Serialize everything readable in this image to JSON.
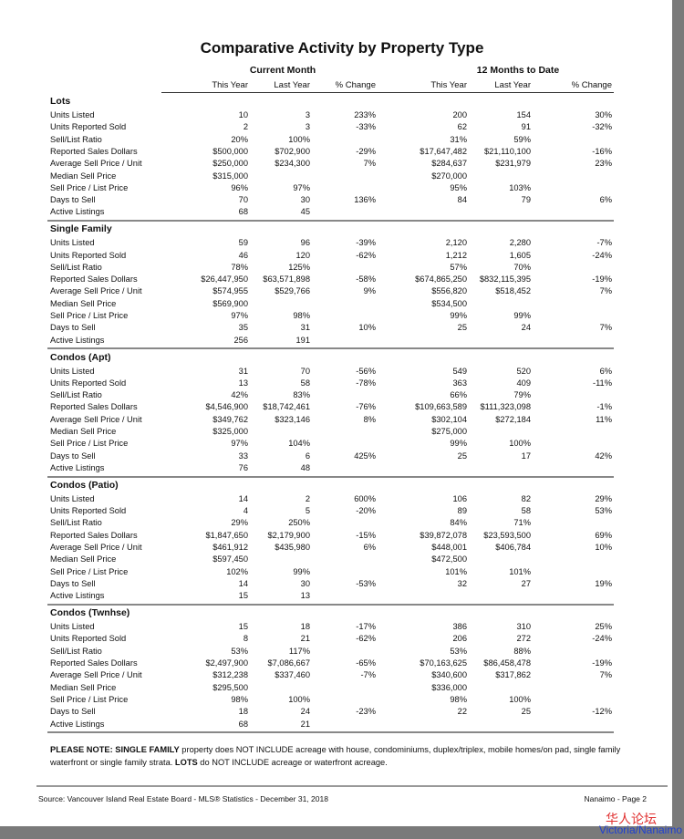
{
  "title": "Comparative Activity by Property Type",
  "groups": {
    "current": "Current Month",
    "ytd": "12 Months to Date"
  },
  "columns": [
    "This Year",
    "Last Year",
    "% Change",
    "This Year",
    "Last Year",
    "% Change"
  ],
  "sections": [
    {
      "name": "Lots",
      "rows": [
        {
          "label": "Units Listed",
          "v": [
            "10",
            "3",
            "233%",
            "200",
            "154",
            "30%"
          ]
        },
        {
          "label": "Units Reported Sold",
          "v": [
            "2",
            "3",
            "-33%",
            "62",
            "91",
            "-32%"
          ]
        },
        {
          "label": "Sell/List Ratio",
          "v": [
            "20%",
            "100%",
            "",
            "31%",
            "59%",
            ""
          ]
        },
        {
          "label": "Reported Sales Dollars",
          "v": [
            "$500,000",
            "$702,900",
            "-29%",
            "$17,647,482",
            "$21,110,100",
            "-16%"
          ]
        },
        {
          "label": "Average Sell Price / Unit",
          "v": [
            "$250,000",
            "$234,300",
            "7%",
            "$284,637",
            "$231,979",
            "23%"
          ]
        },
        {
          "label": "Median Sell Price",
          "v": [
            "$315,000",
            "",
            "",
            "$270,000",
            "",
            ""
          ]
        },
        {
          "label": "Sell Price / List Price",
          "v": [
            "96%",
            "97%",
            "",
            "95%",
            "103%",
            ""
          ]
        },
        {
          "label": "Days to Sell",
          "v": [
            "70",
            "30",
            "136%",
            "84",
            "79",
            "6%"
          ]
        },
        {
          "label": "Active Listings",
          "v": [
            "68",
            "45",
            "",
            "",
            "",
            ""
          ]
        }
      ]
    },
    {
      "name": "Single Family",
      "rows": [
        {
          "label": "Units Listed",
          "v": [
            "59",
            "96",
            "-39%",
            "2,120",
            "2,280",
            "-7%"
          ]
        },
        {
          "label": "Units Reported Sold",
          "v": [
            "46",
            "120",
            "-62%",
            "1,212",
            "1,605",
            "-24%"
          ]
        },
        {
          "label": "Sell/List Ratio",
          "v": [
            "78%",
            "125%",
            "",
            "57%",
            "70%",
            ""
          ]
        },
        {
          "label": "Reported Sales Dollars",
          "v": [
            "$26,447,950",
            "$63,571,898",
            "-58%",
            "$674,865,250",
            "$832,115,395",
            "-19%"
          ]
        },
        {
          "label": "Average Sell Price / Unit",
          "v": [
            "$574,955",
            "$529,766",
            "9%",
            "$556,820",
            "$518,452",
            "7%"
          ]
        },
        {
          "label": "Median Sell Price",
          "v": [
            "$569,900",
            "",
            "",
            "$534,500",
            "",
            ""
          ]
        },
        {
          "label": "Sell Price / List Price",
          "v": [
            "97%",
            "98%",
            "",
            "99%",
            "99%",
            ""
          ]
        },
        {
          "label": "Days to Sell",
          "v": [
            "35",
            "31",
            "10%",
            "25",
            "24",
            "7%"
          ]
        },
        {
          "label": "Active Listings",
          "v": [
            "256",
            "191",
            "",
            "",
            "",
            ""
          ]
        }
      ]
    },
    {
      "name": "Condos (Apt)",
      "rows": [
        {
          "label": "Units Listed",
          "v": [
            "31",
            "70",
            "-56%",
            "549",
            "520",
            "6%"
          ]
        },
        {
          "label": "Units Reported Sold",
          "v": [
            "13",
            "58",
            "-78%",
            "363",
            "409",
            "-11%"
          ]
        },
        {
          "label": "Sell/List Ratio",
          "v": [
            "42%",
            "83%",
            "",
            "66%",
            "79%",
            ""
          ]
        },
        {
          "label": "Reported Sales Dollars",
          "v": [
            "$4,546,900",
            "$18,742,461",
            "-76%",
            "$109,663,589",
            "$111,323,098",
            "-1%"
          ]
        },
        {
          "label": "Average Sell Price / Unit",
          "v": [
            "$349,762",
            "$323,146",
            "8%",
            "$302,104",
            "$272,184",
            "11%"
          ]
        },
        {
          "label": "Median Sell Price",
          "v": [
            "$325,000",
            "",
            "",
            "$275,000",
            "",
            ""
          ]
        },
        {
          "label": "Sell Price / List Price",
          "v": [
            "97%",
            "104%",
            "",
            "99%",
            "100%",
            ""
          ]
        },
        {
          "label": "Days to Sell",
          "v": [
            "33",
            "6",
            "425%",
            "25",
            "17",
            "42%"
          ]
        },
        {
          "label": "Active Listings",
          "v": [
            "76",
            "48",
            "",
            "",
            "",
            ""
          ]
        }
      ]
    },
    {
      "name": "Condos (Patio)",
      "rows": [
        {
          "label": "Units Listed",
          "v": [
            "14",
            "2",
            "600%",
            "106",
            "82",
            "29%"
          ]
        },
        {
          "label": "Units Reported Sold",
          "v": [
            "4",
            "5",
            "-20%",
            "89",
            "58",
            "53%"
          ]
        },
        {
          "label": "Sell/List Ratio",
          "v": [
            "29%",
            "250%",
            "",
            "84%",
            "71%",
            ""
          ]
        },
        {
          "label": "Reported Sales Dollars",
          "v": [
            "$1,847,650",
            "$2,179,900",
            "-15%",
            "$39,872,078",
            "$23,593,500",
            "69%"
          ]
        },
        {
          "label": "Average Sell Price / Unit",
          "v": [
            "$461,912",
            "$435,980",
            "6%",
            "$448,001",
            "$406,784",
            "10%"
          ]
        },
        {
          "label": "Median Sell Price",
          "v": [
            "$597,450",
            "",
            "",
            "$472,500",
            "",
            ""
          ]
        },
        {
          "label": "Sell Price / List Price",
          "v": [
            "102%",
            "99%",
            "",
            "101%",
            "101%",
            ""
          ]
        },
        {
          "label": "Days to Sell",
          "v": [
            "14",
            "30",
            "-53%",
            "32",
            "27",
            "19%"
          ]
        },
        {
          "label": "Active Listings",
          "v": [
            "15",
            "13",
            "",
            "",
            "",
            ""
          ]
        }
      ]
    },
    {
      "name": "Condos (Twnhse)",
      "rows": [
        {
          "label": "Units Listed",
          "v": [
            "15",
            "18",
            "-17%",
            "386",
            "310",
            "25%"
          ]
        },
        {
          "label": "Units Reported Sold",
          "v": [
            "8",
            "21",
            "-62%",
            "206",
            "272",
            "-24%"
          ]
        },
        {
          "label": "Sell/List Ratio",
          "v": [
            "53%",
            "117%",
            "",
            "53%",
            "88%",
            ""
          ]
        },
        {
          "label": "Reported Sales Dollars",
          "v": [
            "$2,497,900",
            "$7,086,667",
            "-65%",
            "$70,163,625",
            "$86,458,478",
            "-19%"
          ]
        },
        {
          "label": "Average Sell Price / Unit",
          "v": [
            "$312,238",
            "$337,460",
            "-7%",
            "$340,600",
            "$317,862",
            "7%"
          ]
        },
        {
          "label": "Median Sell Price",
          "v": [
            "$295,500",
            "",
            "",
            "$336,000",
            "",
            ""
          ]
        },
        {
          "label": "Sell Price / List Price",
          "v": [
            "98%",
            "100%",
            "",
            "98%",
            "100%",
            ""
          ]
        },
        {
          "label": "Days to Sell",
          "v": [
            "18",
            "24",
            "-23%",
            "22",
            "25",
            "-12%"
          ]
        },
        {
          "label": "Active Listings",
          "v": [
            "68",
            "21",
            "",
            "",
            "",
            ""
          ]
        }
      ]
    }
  ],
  "note": {
    "lead": "PLEASE NOTE: SINGLE FAMILY",
    "text1": " property does NOT INCLUDE acreage with house, condominiums, duplex/triplex, mobile homes/on pad, single family waterfront or single family strata. ",
    "lots": "LOTS",
    "text2": " do NOT INCLUDE acreage or waterfront acreage."
  },
  "footer": {
    "source": "Source: Vancouver Island Real Estate Board - MLS® Statistics - December 31, 2018",
    "page": "Nanaimo - Page 2"
  },
  "watermark": {
    "line1": "华人论坛",
    "line2": "Victoria/Nanaimo"
  }
}
